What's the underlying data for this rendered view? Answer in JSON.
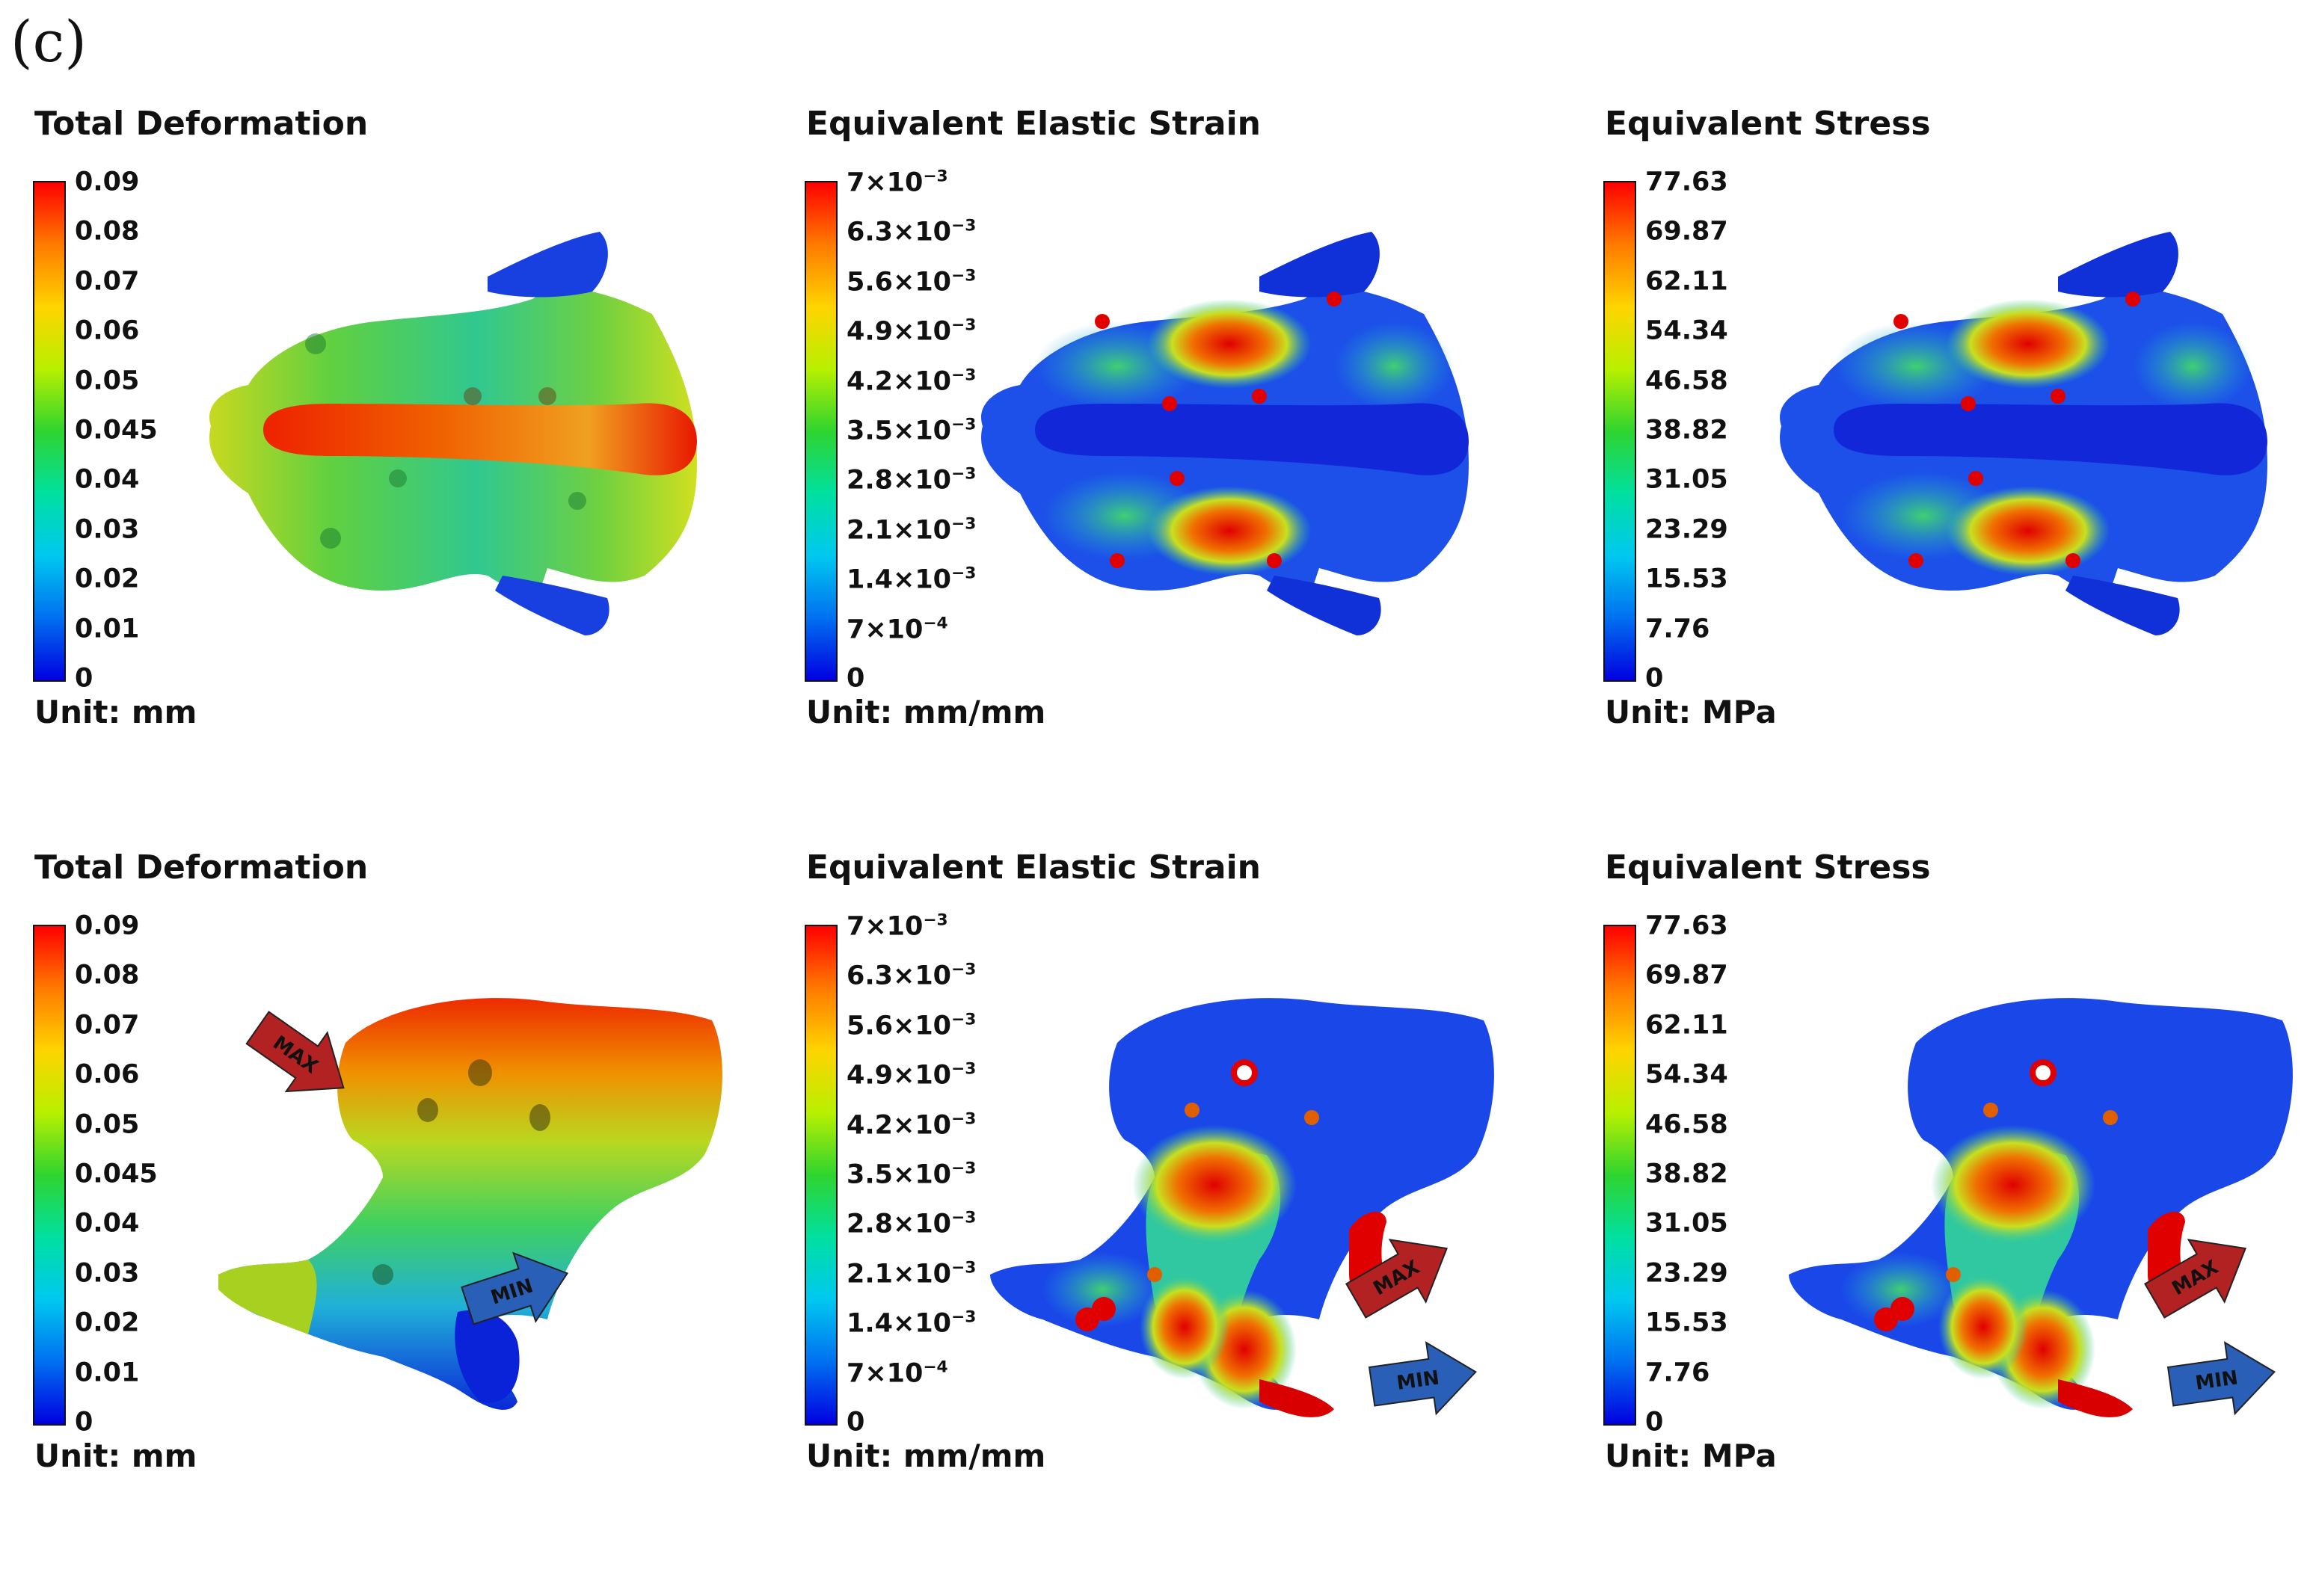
{
  "figure_label": "(c)",
  "colors": {
    "scale_top": "#ff0000",
    "scale_bottom": "#0000e0",
    "max_arrow": "#b22222",
    "min_arrow": "#2a5fb8"
  },
  "panels": [
    {
      "title": "Total Deformation",
      "scale": [
        "0.09",
        "0.08",
        "0.07",
        "0.06",
        "0.05",
        "0.045",
        "0.04",
        "0.03",
        "0.02",
        "0.01",
        "0"
      ],
      "unit": "Unit: mm"
    },
    {
      "title": "Equivalent Elastic Strain",
      "scale": [
        "7×10^-3",
        "6.3×10^-3",
        "5.6×10^-3",
        "4.9×10^-3",
        "4.2×10^-3",
        "3.5×10^-3",
        "2.8×10^-3",
        "2.1×10^-3",
        "1.4×10^-3",
        "7×10^-4",
        "0"
      ],
      "unit": "Unit: mm/mm"
    },
    {
      "title": "Equivalent Stress",
      "scale": [
        "77.63",
        "69.87",
        "62.11",
        "54.34",
        "46.58",
        "38.82",
        "31.05",
        "23.29",
        "15.53",
        "7.76",
        "0"
      ],
      "unit": "Unit: MPa"
    },
    {
      "title": "Total Deformation",
      "scale": [
        "0.09",
        "0.08",
        "0.07",
        "0.06",
        "0.05",
        "0.045",
        "0.04",
        "0.03",
        "0.02",
        "0.01",
        "0"
      ],
      "unit": "Unit: mm",
      "arrows": {
        "max": "MAX",
        "min": "MIN"
      }
    },
    {
      "title": "Equivalent Elastic Strain",
      "scale": [
        "7×10^-3",
        "6.3×10^-3",
        "5.6×10^-3",
        "4.9×10^-3",
        "4.2×10^-3",
        "3.5×10^-3",
        "2.8×10^-3",
        "2.1×10^-3",
        "1.4×10^-3",
        "7×10^-4",
        "0"
      ],
      "unit": "Unit: mm/mm",
      "arrows": {
        "max": "MAX",
        "min": "MIN"
      }
    },
    {
      "title": "Equivalent Stress",
      "scale": [
        "77.63",
        "69.87",
        "62.11",
        "54.34",
        "46.58",
        "38.82",
        "31.05",
        "23.29",
        "15.53",
        "7.76",
        "0"
      ],
      "unit": "Unit: MPa",
      "arrows": {
        "max": "MAX",
        "min": "MIN"
      }
    }
  ]
}
